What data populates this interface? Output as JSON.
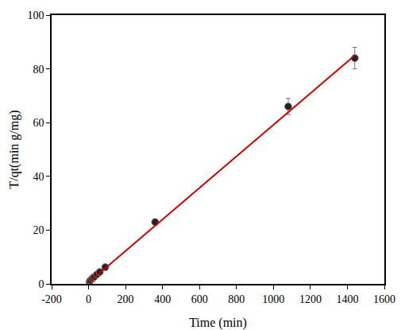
{
  "chart_data": {
    "type": "scatter",
    "x_label": "Time (min)",
    "y_label": "T/qt(min g/mg)",
    "xlim": [
      -200,
      1600
    ],
    "xticks": [
      -200,
      0,
      200,
      400,
      600,
      800,
      1000,
      1200,
      1400,
      1600
    ],
    "ylim": [
      0,
      100
    ],
    "yticks": [
      0,
      20,
      40,
      60,
      80,
      100
    ],
    "grid": false,
    "series": [
      {
        "type": "scatter",
        "color": "#222222",
        "marker": "circle",
        "x": [
          5,
          10,
          20,
          30,
          45,
          60,
          90,
          360,
          1080,
          1440
        ],
        "values": [
          0.8,
          1.3,
          2.0,
          2.6,
          3.5,
          4.4,
          6.2,
          23,
          66,
          84
        ],
        "error": [
          0.1,
          0.1,
          0.15,
          0.2,
          0.3,
          0.3,
          0.5,
          1.0,
          3.0,
          4.0
        ]
      },
      {
        "type": "line",
        "color": "#cc0000",
        "line_style": "solid",
        "x": [
          0,
          1440
        ],
        "values": [
          0.5,
          85
        ]
      }
    ]
  }
}
